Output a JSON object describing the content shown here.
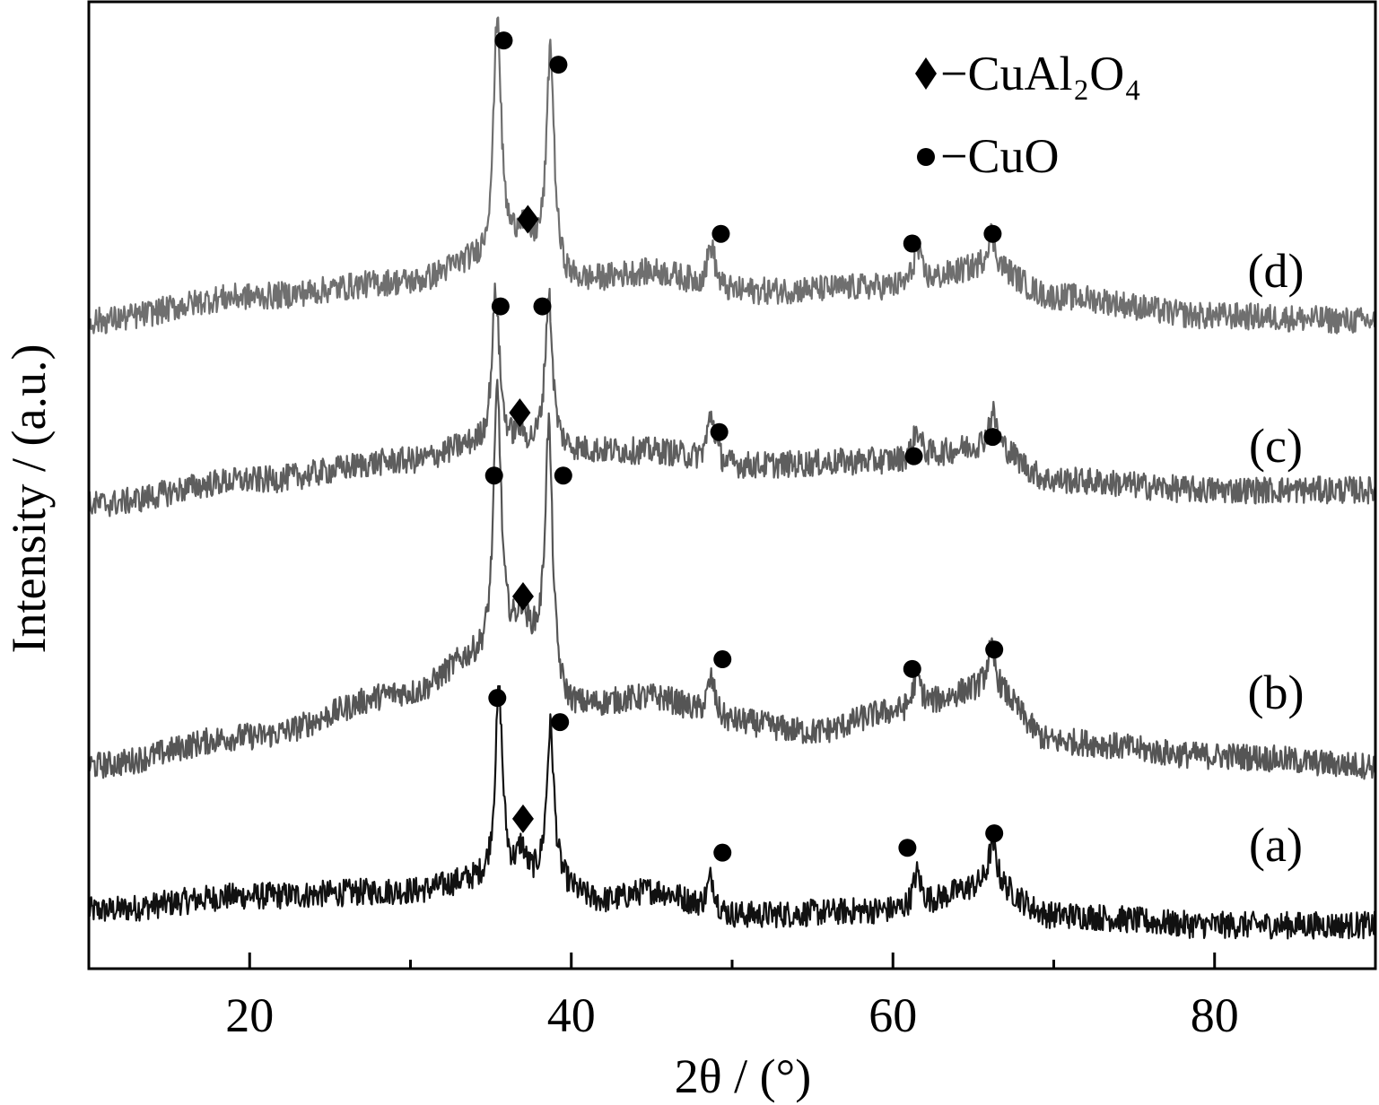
{
  "chart_data": {
    "type": "line",
    "title": "",
    "xlabel": "2θ / (°)",
    "ylabel": "Intensity / (a.u.)",
    "xlim": [
      10,
      90
    ],
    "xticks": [
      20,
      40,
      60,
      80
    ],
    "minor_xticks": [
      30,
      50,
      70
    ],
    "ylim": [
      0,
      10
    ],
    "y_tick_labels": false,
    "grid": false,
    "colors": {
      "a": "#111111",
      "b": "#555555",
      "c": "#5e5e5e",
      "d": "#6f6f6f"
    },
    "legend": {
      "location": "top-right",
      "entries": [
        {
          "marker": "diamond",
          "label": "−CuAl₂O₄"
        },
        {
          "marker": "circle",
          "label": "−CuO"
        }
      ]
    },
    "series": [
      {
        "name": "(a)",
        "baseline": [
          [
            10,
            0.6
          ],
          [
            20,
            0.75
          ],
          [
            30,
            0.8
          ],
          [
            34,
            0.9
          ],
          [
            38,
            0.9
          ],
          [
            42,
            0.7
          ],
          [
            45,
            0.8
          ],
          [
            50,
            0.55
          ],
          [
            60,
            0.6
          ],
          [
            66,
            0.85
          ],
          [
            70,
            0.55
          ],
          [
            80,
            0.45
          ],
          [
            90,
            0.45
          ]
        ],
        "peaks": [
          {
            "x": 35.5,
            "height": 1.95,
            "phase": "CuO"
          },
          {
            "x": 36.9,
            "height": 0.3,
            "phase": "CuAl2O4"
          },
          {
            "x": 38.7,
            "height": 1.6,
            "phase": "CuO"
          },
          {
            "x": 48.7,
            "height": 0.35,
            "phase": "CuO"
          },
          {
            "x": 61.5,
            "height": 0.35,
            "phase": "CuO"
          },
          {
            "x": 66.2,
            "height": 0.45,
            "phase": "CuO"
          }
        ],
        "markers": [
          {
            "type": "circle",
            "x": 35.4,
            "y": 2.8
          },
          {
            "type": "diamond",
            "x": 37.0,
            "y": 1.55
          },
          {
            "type": "circle",
            "x": 39.3,
            "y": 2.55
          },
          {
            "type": "circle",
            "x": 49.4,
            "y": 1.2
          },
          {
            "type": "circle",
            "x": 60.9,
            "y": 1.25
          },
          {
            "type": "circle",
            "x": 66.3,
            "y": 1.4
          }
        ]
      },
      {
        "name": "(b)",
        "baseline": [
          [
            10,
            2.1
          ],
          [
            20,
            2.4
          ],
          [
            30,
            2.85
          ],
          [
            34,
            3.2
          ],
          [
            37,
            3.4
          ],
          [
            40,
            2.7
          ],
          [
            45,
            2.8
          ],
          [
            50,
            2.55
          ],
          [
            55,
            2.45
          ],
          [
            60,
            2.65
          ],
          [
            66,
            2.9
          ],
          [
            70,
            2.35
          ],
          [
            80,
            2.2
          ],
          [
            90,
            2.1
          ]
        ],
        "peaks": [
          {
            "x": 35.4,
            "height": 2.7,
            "phase": "CuO"
          },
          {
            "x": 36.9,
            "height": 0.25,
            "phase": "CuAl2O4"
          },
          {
            "x": 38.6,
            "height": 2.6,
            "phase": "CuO"
          },
          {
            "x": 48.7,
            "height": 0.4,
            "phase": "CuO"
          },
          {
            "x": 61.5,
            "height": 0.35,
            "phase": "CuO"
          },
          {
            "x": 66.1,
            "height": 0.4,
            "phase": "CuO"
          }
        ],
        "markers": [
          {
            "type": "circle",
            "x": 35.2,
            "y": 5.1
          },
          {
            "type": "diamond",
            "x": 37.0,
            "y": 3.85
          },
          {
            "type": "circle",
            "x": 39.5,
            "y": 5.1
          },
          {
            "type": "circle",
            "x": 49.4,
            "y": 3.2
          },
          {
            "type": "circle",
            "x": 61.2,
            "y": 3.1
          },
          {
            "type": "circle",
            "x": 66.3,
            "y": 3.3
          }
        ]
      },
      {
        "name": "(c)",
        "baseline": [
          [
            10,
            4.8
          ],
          [
            20,
            5.05
          ],
          [
            30,
            5.25
          ],
          [
            34,
            5.4
          ],
          [
            40,
            5.35
          ],
          [
            45,
            5.35
          ],
          [
            50,
            5.2
          ],
          [
            60,
            5.25
          ],
          [
            66,
            5.4
          ],
          [
            70,
            5.05
          ],
          [
            80,
            4.95
          ],
          [
            90,
            4.95
          ]
        ],
        "peaks": [
          {
            "x": 35.3,
            "height": 1.6,
            "phase": "CuO"
          },
          {
            "x": 36.8,
            "height": 0.15,
            "phase": "CuAl2O4"
          },
          {
            "x": 38.6,
            "height": 1.6,
            "phase": "CuO"
          },
          {
            "x": 48.7,
            "height": 0.5,
            "phase": "CuO"
          },
          {
            "x": 61.5,
            "height": 0.3,
            "phase": "CuO"
          },
          {
            "x": 66.2,
            "height": 0.35,
            "phase": "CuO"
          }
        ],
        "markers": [
          {
            "type": "circle",
            "x": 35.6,
            "y": 6.85
          },
          {
            "type": "diamond",
            "x": 36.8,
            "y": 5.75
          },
          {
            "type": "circle",
            "x": 38.2,
            "y": 6.85
          },
          {
            "type": "circle",
            "x": 49.2,
            "y": 5.55
          },
          {
            "type": "circle",
            "x": 61.3,
            "y": 5.3
          },
          {
            "type": "circle",
            "x": 66.2,
            "y": 5.5
          }
        ]
      },
      {
        "name": "(d)",
        "baseline": [
          [
            10,
            6.7
          ],
          [
            20,
            6.95
          ],
          [
            30,
            7.1
          ],
          [
            34,
            7.3
          ],
          [
            37,
            7.45
          ],
          [
            40,
            7.1
          ],
          [
            45,
            7.2
          ],
          [
            50,
            7.0
          ],
          [
            60,
            7.05
          ],
          [
            66,
            7.25
          ],
          [
            70,
            6.95
          ],
          [
            80,
            6.75
          ],
          [
            90,
            6.7
          ]
        ],
        "peaks": [
          {
            "x": 35.4,
            "height": 2.5,
            "phase": "CuO"
          },
          {
            "x": 36.9,
            "height": 0.2,
            "phase": "CuAl2O4"
          },
          {
            "x": 38.7,
            "height": 2.3,
            "phase": "CuO"
          },
          {
            "x": 48.7,
            "height": 0.45,
            "phase": "CuO"
          },
          {
            "x": 61.5,
            "height": 0.35,
            "phase": "CuO"
          },
          {
            "x": 66.1,
            "height": 0.35,
            "phase": "CuO"
          }
        ],
        "markers": [
          {
            "type": "circle",
            "x": 35.8,
            "y": 9.6
          },
          {
            "type": "diamond",
            "x": 37.3,
            "y": 7.75
          },
          {
            "type": "circle",
            "x": 39.2,
            "y": 9.35
          },
          {
            "type": "circle",
            "x": 49.3,
            "y": 7.6
          },
          {
            "type": "circle",
            "x": 61.2,
            "y": 7.5
          },
          {
            "type": "circle",
            "x": 66.2,
            "y": 7.6
          }
        ]
      }
    ]
  }
}
